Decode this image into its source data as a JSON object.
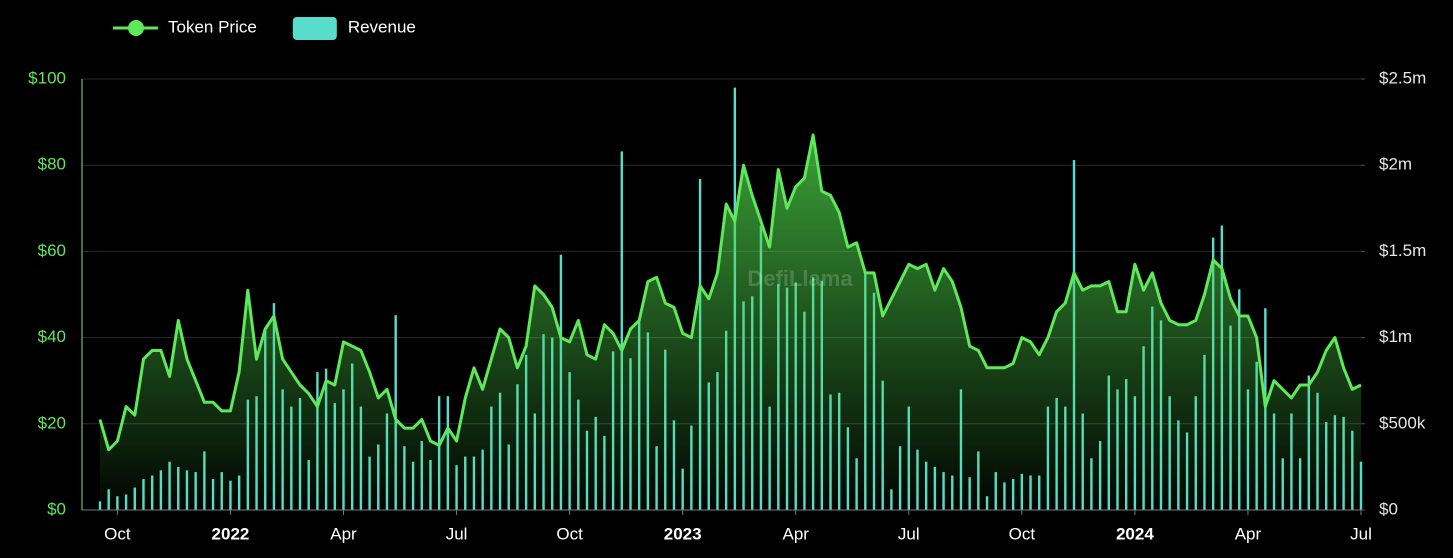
{
  "chart_data": {
    "type": "line",
    "watermark": "DefiLlama",
    "categories": [
      null,
      null,
      "Oct",
      null,
      null,
      null,
      null,
      null,
      null,
      null,
      null,
      null,
      null,
      null,
      null,
      "2022",
      null,
      null,
      null,
      null,
      null,
      null,
      null,
      null,
      null,
      null,
      null,
      null,
      "Apr",
      null,
      null,
      null,
      null,
      null,
      null,
      null,
      null,
      null,
      null,
      null,
      null,
      "Jul",
      null,
      null,
      null,
      null,
      null,
      null,
      null,
      null,
      null,
      null,
      null,
      null,
      "Oct",
      null,
      null,
      null,
      null,
      null,
      null,
      null,
      null,
      null,
      null,
      null,
      null,
      "2023",
      null,
      null,
      null,
      null,
      null,
      null,
      null,
      null,
      null,
      null,
      null,
      null,
      "Apr",
      null,
      null,
      null,
      null,
      null,
      null,
      null,
      null,
      null,
      null,
      null,
      null,
      "Jul",
      null,
      null,
      null,
      null,
      null,
      null,
      null,
      null,
      null,
      null,
      null,
      null,
      "Oct",
      null,
      null,
      null,
      null,
      null,
      null,
      null,
      null,
      null,
      null,
      null,
      null,
      "2024",
      null,
      null,
      null,
      null,
      null,
      null,
      null,
      null,
      null,
      null,
      null,
      null,
      "Apr",
      null,
      null,
      null,
      null,
      null,
      null,
      null,
      null,
      null,
      null,
      null,
      null,
      "Jul"
    ],
    "series": [
      {
        "name": "Token Price",
        "type": "line",
        "color": "#5ee85a",
        "values": [
          21,
          14,
          16,
          24,
          22,
          35,
          37,
          37,
          31,
          44,
          35,
          30,
          25,
          25,
          23,
          23,
          32,
          51,
          35,
          42,
          45,
          35,
          32,
          29,
          27,
          24,
          30,
          29,
          39,
          38,
          37,
          32,
          26,
          28,
          21,
          19,
          19,
          21,
          16,
          15,
          19,
          16,
          26,
          33,
          28,
          35,
          42,
          40,
          33,
          38,
          52,
          50,
          47,
          40,
          39,
          44,
          36,
          35,
          43,
          41,
          37,
          42,
          44,
          53,
          54,
          48,
          47,
          41,
          40,
          52,
          49,
          55,
          71,
          67,
          80,
          73,
          67,
          61,
          79,
          70,
          75,
          77,
          87,
          74,
          73,
          69,
          61,
          62,
          55,
          55,
          45,
          49,
          53,
          57,
          56,
          57,
          51,
          56,
          53,
          47,
          38,
          37,
          33,
          33,
          33,
          34,
          40,
          39,
          36,
          40,
          46,
          48,
          55,
          51,
          52,
          52,
          53,
          46,
          46,
          57,
          51,
          55,
          48,
          44,
          43,
          43,
          44,
          50,
          58,
          56,
          49,
          45,
          45,
          40,
          24,
          30,
          28,
          26,
          29,
          29,
          32,
          37,
          40,
          33,
          28,
          29
        ]
      },
      {
        "name": "Revenue",
        "type": "bar",
        "color": "#58dccb",
        "axis": "y2",
        "values": [
          50000,
          120000,
          80000,
          90000,
          130000,
          180000,
          200000,
          230000,
          280000,
          250000,
          230000,
          220000,
          340000,
          180000,
          220000,
          170000,
          200000,
          640000,
          660000,
          1050000,
          1200000,
          700000,
          600000,
          650000,
          290000,
          800000,
          820000,
          620000,
          700000,
          850000,
          600000,
          310000,
          380000,
          560000,
          1130000,
          370000,
          280000,
          400000,
          290000,
          660000,
          660000,
          260000,
          310000,
          310000,
          350000,
          600000,
          680000,
          380000,
          730000,
          900000,
          560000,
          1020000,
          1000000,
          1480000,
          800000,
          640000,
          460000,
          540000,
          430000,
          920000,
          2080000,
          880000,
          1100000,
          1030000,
          370000,
          930000,
          520000,
          240000,
          490000,
          1920000,
          740000,
          800000,
          1040000,
          2450000,
          1210000,
          1240000,
          1650000,
          600000,
          1310000,
          1290000,
          1320000,
          1150000,
          1350000,
          1330000,
          670000,
          680000,
          480000,
          300000,
          1380000,
          1260000,
          750000,
          120000,
          370000,
          600000,
          350000,
          280000,
          250000,
          220000,
          200000,
          700000,
          190000,
          340000,
          80000,
          220000,
          160000,
          180000,
          210000,
          200000,
          200000,
          600000,
          650000,
          600000,
          2030000,
          560000,
          300000,
          400000,
          780000,
          700000,
          760000,
          660000,
          950000,
          1180000,
          1100000,
          660000,
          520000,
          450000,
          660000,
          900000,
          1580000,
          1650000,
          1070000,
          1280000,
          700000,
          860000,
          1170000,
          560000,
          300000,
          560000,
          300000,
          780000,
          680000,
          510000,
          550000,
          540000,
          460000,
          280000
        ]
      }
    ],
    "ylim": [
      0,
      100
    ],
    "yticks": [
      {
        "value": 0,
        "label": "$0"
      },
      {
        "value": 20,
        "label": "$20"
      },
      {
        "value": 40,
        "label": "$40"
      },
      {
        "value": 60,
        "label": "$60"
      },
      {
        "value": 80,
        "label": "$80"
      },
      {
        "value": 100,
        "label": "$100"
      }
    ],
    "y2lim": [
      0,
      2500000
    ],
    "y2ticks": [
      {
        "value": 0,
        "label": "$0"
      },
      {
        "value": 500000,
        "label": "$500k"
      },
      {
        "value": 1000000,
        "label": "$1m"
      },
      {
        "value": 1500000,
        "label": "$1.5m"
      },
      {
        "value": 2000000,
        "label": "$2m"
      },
      {
        "value": 2500000,
        "label": "$2.5m"
      }
    ],
    "grid": true,
    "legend": "top-left"
  }
}
